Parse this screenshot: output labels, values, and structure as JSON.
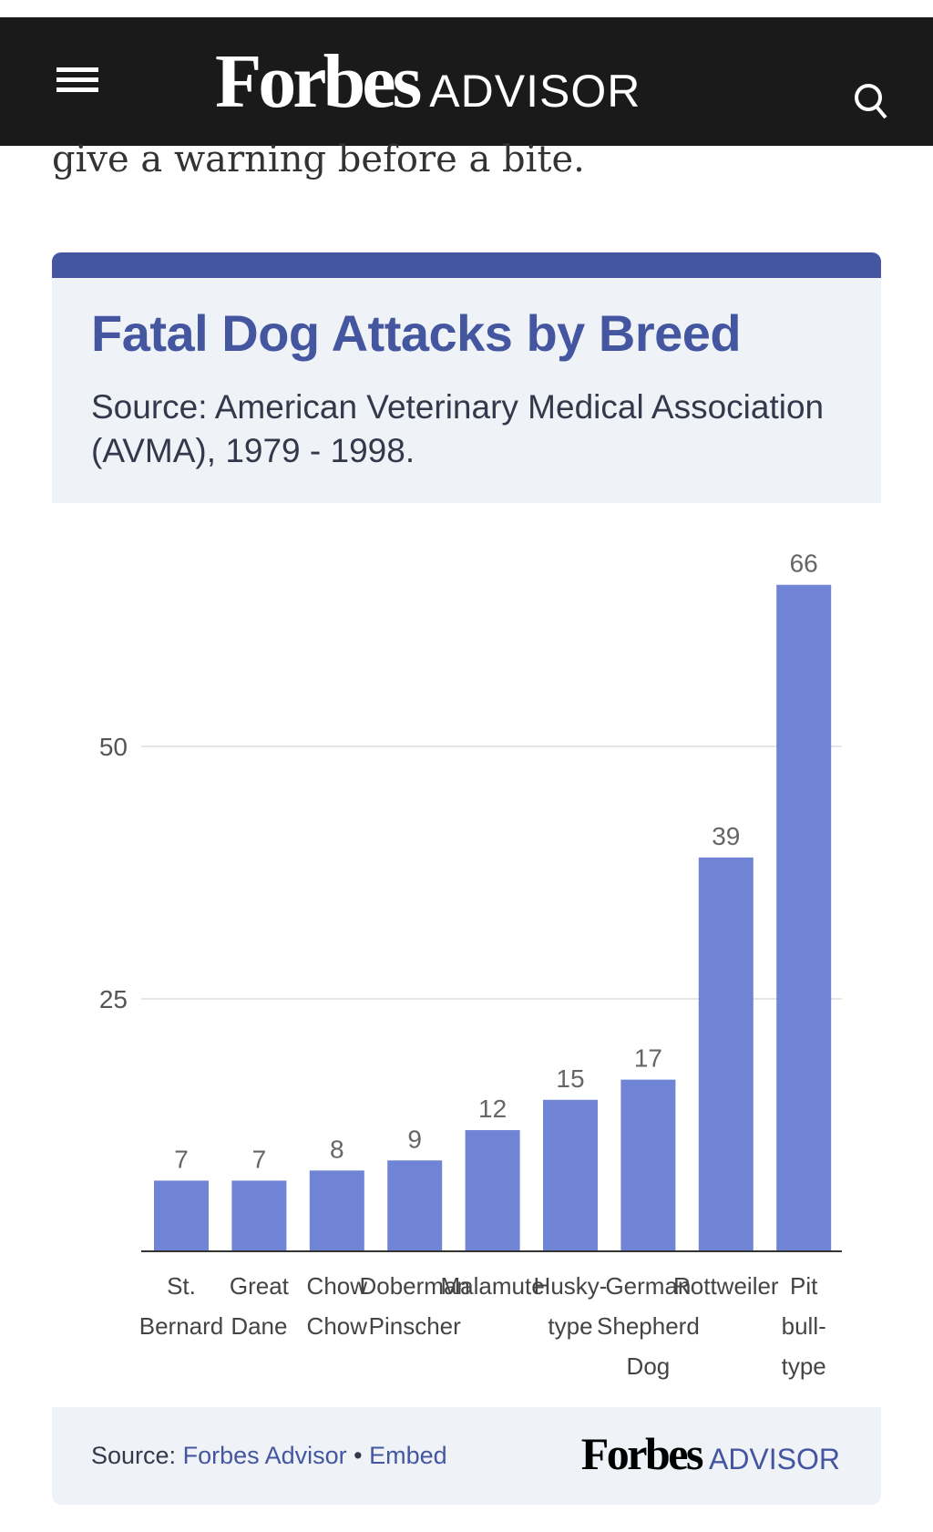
{
  "header": {
    "logo_main": "Forbes",
    "logo_sub": "ADVISOR"
  },
  "intro_text": "give a warning before a bite.",
  "card": {
    "title": "Fatal Dog Attacks by Breed",
    "subtitle": "Source: American Veterinary Medical Association (AVMA), 1979 - 1998."
  },
  "footer": {
    "source_label": "Source:",
    "source_link": "Forbes Advisor",
    "separator": "•",
    "embed_link": "Embed",
    "logo_main": "Forbes",
    "logo_sub": "ADVISOR"
  },
  "colors": {
    "bar": "#7084d6",
    "accent": "#44569f"
  },
  "chart_data": {
    "type": "bar",
    "title": "Fatal Dog Attacks by Breed",
    "categories": [
      "St. Bernard",
      "Great Dane",
      "Chow Chow",
      "Doberman Pinscher",
      "Malamute",
      "Husky-type",
      "German Shepherd Dog",
      "Rottweiler",
      "Pit bull-type"
    ],
    "values": [
      7,
      7,
      8,
      9,
      12,
      15,
      17,
      39,
      66
    ],
    "yticks": [
      25,
      50
    ],
    "ylim": [
      0,
      66
    ],
    "xlabel": "",
    "ylabel": "",
    "grid": true,
    "data_labels": true
  }
}
